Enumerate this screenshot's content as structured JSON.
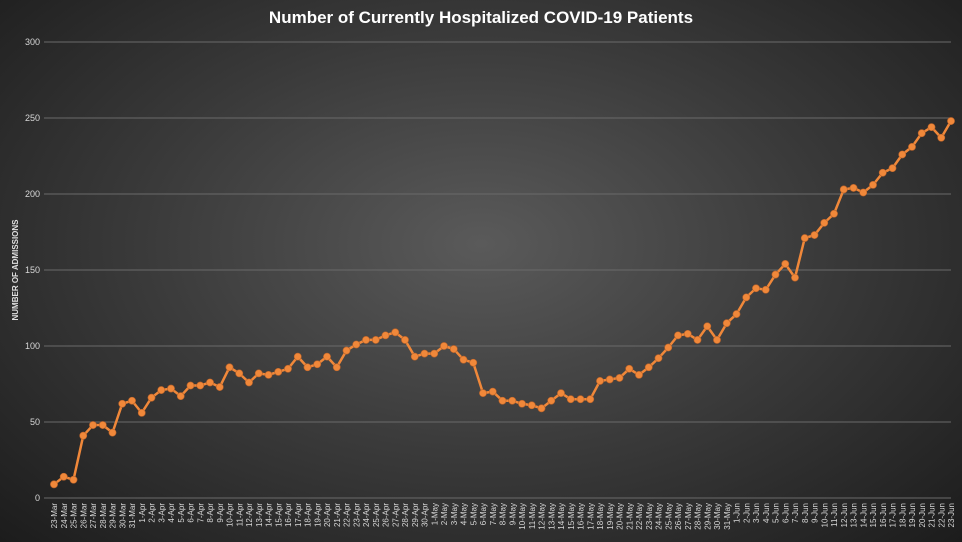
{
  "chart_data": {
    "type": "line",
    "title": "Number of Currently Hospitalized COVID-19 Patients",
    "xlabel": "",
    "ylabel": "NUMBER OF ADMISSIONS",
    "ylim": [
      0,
      300
    ],
    "yticks": [
      0,
      50,
      100,
      150,
      200,
      250,
      300
    ],
    "grid": true,
    "color": "#f0883a",
    "x": [
      "23-Mar",
      "24-Mar",
      "25-Mar",
      "26-Mar",
      "27-Mar",
      "28-Mar",
      "29-Mar",
      "30-Mar",
      "31-Mar",
      "1-Apr",
      "2-Apr",
      "3-Apr",
      "4-Apr",
      "5-Apr",
      "6-Apr",
      "7-Apr",
      "8-Apr",
      "9-Apr",
      "10-Apr",
      "11-Apr",
      "12-Apr",
      "13-Apr",
      "14-Apr",
      "15-Apr",
      "16-Apr",
      "17-Apr",
      "18-Apr",
      "19-Apr",
      "20-Apr",
      "21-Apr",
      "22-Apr",
      "23-Apr",
      "24-Apr",
      "25-Apr",
      "26-Apr",
      "27-Apr",
      "28-Apr",
      "29-Apr",
      "30-Apr",
      "1-May",
      "2-May",
      "3-May",
      "4-May",
      "5-May",
      "6-May",
      "7-May",
      "8-May",
      "9-May",
      "10-May",
      "11-May",
      "12-May",
      "13-May",
      "14-May",
      "15-May",
      "16-May",
      "17-May",
      "18-May",
      "19-May",
      "20-May",
      "21-May",
      "22-May",
      "23-May",
      "24-May",
      "25-May",
      "26-May",
      "27-May",
      "28-May",
      "29-May",
      "30-May",
      "31-May",
      "1-Jun",
      "2-Jun",
      "3-Jun",
      "4-Jun",
      "5-Jun",
      "6-Jun",
      "7-Jun",
      "8-Jun",
      "9-Jun",
      "10-Jun",
      "11-Jun",
      "12-Jun",
      "13-Jun",
      "14-Jun",
      "15-Jun",
      "16-Jun",
      "17-Jun",
      "18-Jun",
      "19-Jun",
      "20-Jun",
      "21-Jun",
      "22-Jun",
      "23-Jun"
    ],
    "values": [
      9,
      14,
      12,
      41,
      48,
      48,
      43,
      62,
      64,
      56,
      66,
      71,
      72,
      67,
      74,
      74,
      76,
      73,
      86,
      82,
      76,
      82,
      81,
      83,
      85,
      93,
      86,
      88,
      93,
      86,
      97,
      101,
      104,
      104,
      107,
      109,
      104,
      93,
      95,
      95,
      100,
      98,
      91,
      89,
      69,
      70,
      64,
      64,
      62,
      61,
      59,
      64,
      69,
      65,
      65,
      65,
      77,
      78,
      79,
      85,
      81,
      86,
      92,
      99,
      107,
      108,
      104,
      113,
      104,
      115,
      121,
      132,
      138,
      137,
      147,
      154,
      145,
      171,
      173,
      181,
      187,
      203,
      204,
      201,
      206,
      214,
      217,
      226,
      231,
      240,
      244,
      237,
      248
    ]
  }
}
